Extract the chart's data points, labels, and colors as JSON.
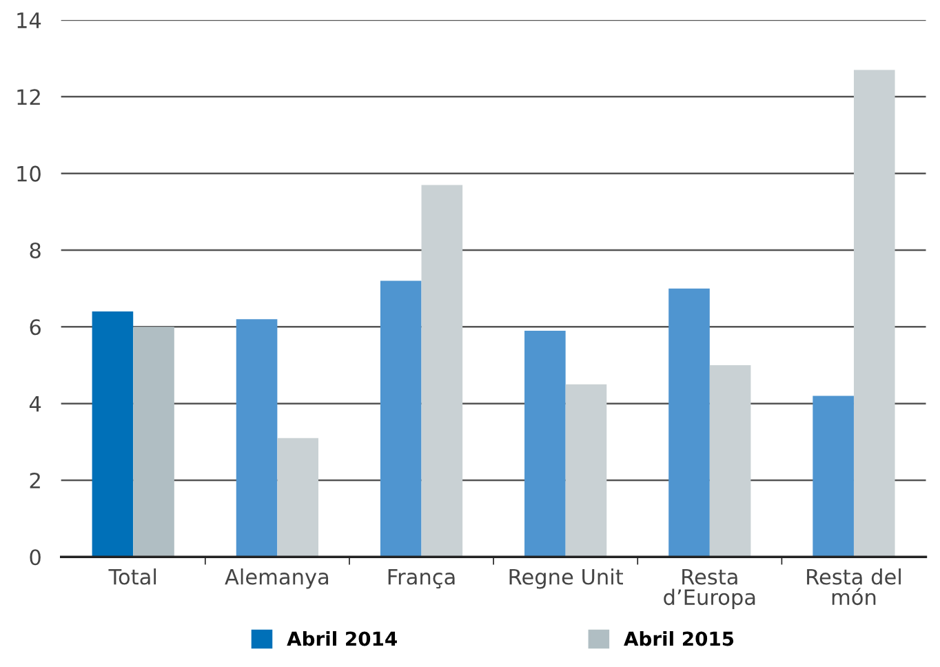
{
  "chart_data": {
    "type": "bar",
    "categories": [
      "Total",
      "Alemanya",
      "França",
      "Regne Unit",
      "Resta\nd’Europa",
      "Resta del\nmón"
    ],
    "series": [
      {
        "name": "Abril 2014",
        "color": "#0070b8",
        "colors": [
          "#0070b8",
          "#4f95d0",
          "#4f95d0",
          "#4f95d0",
          "#4f95d0",
          "#4f95d0"
        ],
        "values": [
          6.4,
          6.2,
          7.2,
          5.9,
          7.0,
          4.2
        ]
      },
      {
        "name": "Abril 2015",
        "color": "#b0bec3",
        "colors": [
          "#b0bec3",
          "#c9d1d4",
          "#c9d1d4",
          "#c9d1d4",
          "#c9d1d4",
          "#c9d1d4"
        ],
        "values": [
          6.0,
          3.1,
          9.7,
          4.5,
          5.0,
          12.7
        ]
      }
    ],
    "ylim": [
      0,
      14
    ],
    "yticks": [
      0,
      2,
      4,
      6,
      8,
      10,
      12,
      14
    ],
    "grid": "y",
    "legend": "bottom"
  }
}
